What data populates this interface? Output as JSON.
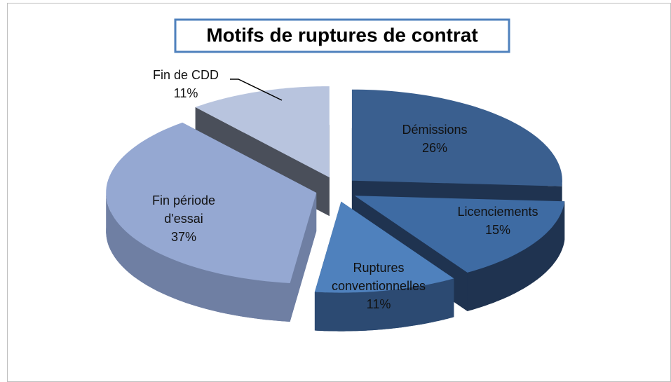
{
  "chart_data": {
    "type": "pie",
    "title": "Motifs de ruptures de contrat",
    "categories": [
      "Démissions",
      "Licenciements",
      "Ruptures conventionnelles",
      "Fin période d'essai",
      "Fin de CDD"
    ],
    "values": [
      26,
      15,
      11,
      37,
      11
    ],
    "value_labels": [
      "26%",
      "15%",
      "11%",
      "37%",
      "11%"
    ],
    "colors": [
      "#3a5f8f",
      "#3e6ba3",
      "#4f81bd",
      "#95a8d2",
      "#b8c4de"
    ],
    "side_colors": [
      "#1f3350",
      "#1f3350",
      "#2c4a72",
      "#6f7fa3",
      "#4a4f5a"
    ]
  }
}
